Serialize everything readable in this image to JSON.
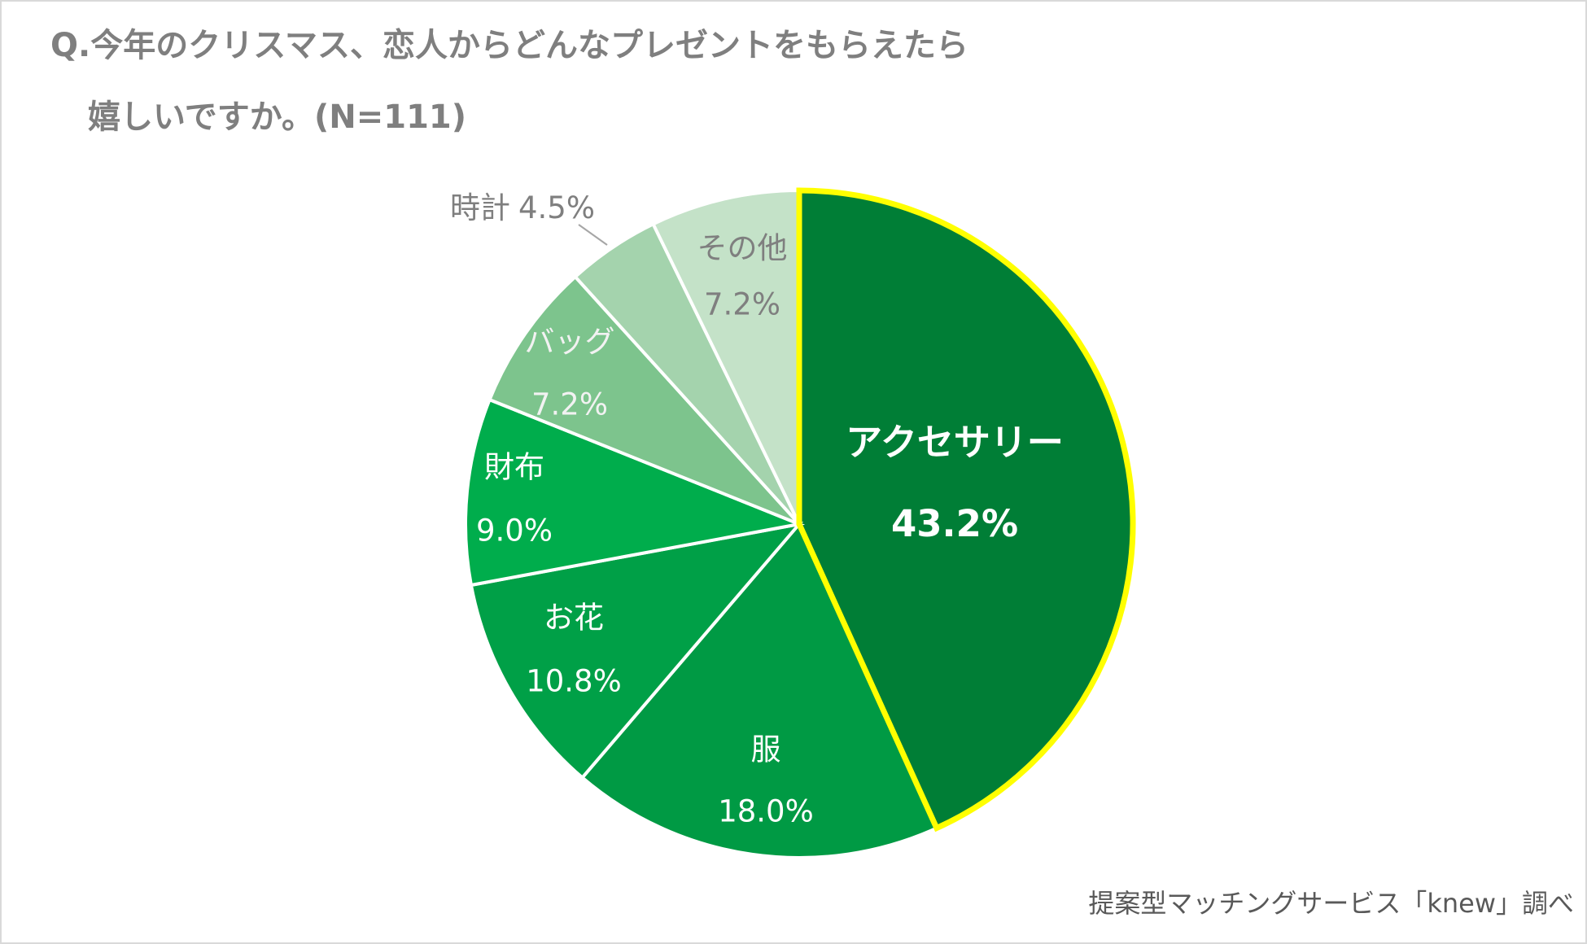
{
  "chart_data": {
    "type": "pie",
    "title": [
      "Q.今年のクリスマス、恋人からどんなプレゼントをもらえたら",
      "嬉しいですか。(N=111)"
    ],
    "categories": [
      "アクセサリー",
      "服",
      "お花",
      "財布",
      "バッグ",
      "時計",
      "その他"
    ],
    "values": [
      43.2,
      18.0,
      10.8,
      9.0,
      7.2,
      4.5,
      7.2
    ],
    "value_labels": [
      "43.2%",
      "18.0%",
      "10.8%",
      "9.0%",
      "7.2%",
      "4.5%",
      "7.2%"
    ],
    "colors": [
      "#007e36",
      "#009a44",
      "#00a047",
      "#00ad4c",
      "#7dc48d",
      "#a4d3ad",
      "#c4e2c8"
    ],
    "source": "提案型マッチングサービス「knew」調べ"
  }
}
